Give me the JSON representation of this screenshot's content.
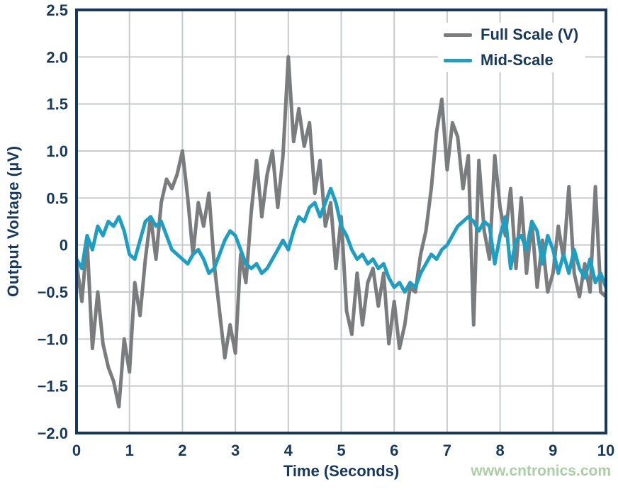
{
  "page": {
    "watermark": "www.cntronics.com"
  },
  "chart_data": {
    "type": "line",
    "title": "",
    "xlabel": "Time (Seconds)",
    "ylabel": "Output Voltage (µV)",
    "xlim": [
      0,
      10
    ],
    "ylim": [
      -2.0,
      2.5
    ],
    "grid": true,
    "legend_position": "top-right",
    "xticks": {
      "values": [
        0,
        1,
        2,
        3,
        4,
        5,
        6,
        7,
        8,
        9,
        10
      ],
      "labels": [
        "0",
        "1",
        "2",
        "3",
        "4",
        "5",
        "6",
        "7",
        "8",
        "9",
        "10"
      ]
    },
    "yticks": {
      "values": [
        2.5,
        2.0,
        1.5,
        1.0,
        0.5,
        0,
        -0.5,
        -1.0,
        -1.5,
        -2.0
      ],
      "labels": [
        "2.5",
        "2.0",
        "1.5",
        "1.0",
        "0.5",
        "0",
        "−0.5",
        "−1.0",
        "−1.5",
        "−2.0"
      ]
    },
    "x_start": 0,
    "x_step": 0.1,
    "colors": {
      "axis": "#17395e",
      "grid": "#c8cacc",
      "background": "#ffffff"
    },
    "series": [
      {
        "name": "Full Scale (V)",
        "color": "#7b7c7e",
        "values": [
          -0.2,
          -0.6,
          0.05,
          -1.1,
          -0.5,
          -1.05,
          -1.3,
          -1.45,
          -1.72,
          -1.0,
          -1.35,
          -0.4,
          -0.75,
          -0.15,
          0.3,
          -0.15,
          0.45,
          0.7,
          0.6,
          0.75,
          1.0,
          0.5,
          -0.1,
          0.45,
          0.2,
          0.55,
          -0.2,
          -0.7,
          -1.2,
          -0.85,
          -1.15,
          -0.1,
          -0.4,
          0.35,
          0.9,
          0.3,
          0.75,
          1.0,
          0.4,
          0.95,
          2.0,
          1.1,
          1.45,
          1.05,
          1.3,
          0.55,
          0.9,
          0.2,
          0.45,
          -0.25,
          0.3,
          -0.7,
          -0.95,
          -0.3,
          -0.85,
          -0.4,
          -0.25,
          -0.65,
          -0.3,
          -1.05,
          -0.6,
          -1.1,
          -0.85,
          -0.45,
          -0.5,
          -0.1,
          0.15,
          0.6,
          1.2,
          1.55,
          0.8,
          1.3,
          1.15,
          0.6,
          0.95,
          -0.85,
          0.9,
          0.15,
          -0.15,
          0.95,
          0.4,
          0.1,
          0.6,
          -0.25,
          0.5,
          -0.3,
          0.25,
          -0.45,
          0.05,
          -0.5,
          -0.3,
          0.2,
          -0.15,
          0.62,
          -0.3,
          -0.55,
          -0.2,
          -0.5,
          0.62,
          -0.5,
          -0.55
        ]
      },
      {
        "name": "Mid-Scale",
        "color": "#1c9fc2",
        "values": [
          -0.15,
          -0.25,
          0.1,
          -0.05,
          0.2,
          0.1,
          0.25,
          0.2,
          0.3,
          0.15,
          -0.1,
          -0.15,
          0.05,
          0.25,
          0.3,
          0.2,
          0.25,
          0.1,
          -0.05,
          -0.1,
          -0.15,
          -0.2,
          -0.1,
          -0.05,
          -0.15,
          -0.3,
          -0.25,
          -0.1,
          0.05,
          0.15,
          0.1,
          -0.05,
          -0.2,
          -0.25,
          -0.2,
          -0.3,
          -0.25,
          -0.15,
          -0.05,
          0.05,
          -0.05,
          0.15,
          0.3,
          0.25,
          0.4,
          0.45,
          0.3,
          0.45,
          0.6,
          0.45,
          0.2,
          0.1,
          -0.05,
          -0.15,
          -0.1,
          -0.2,
          -0.15,
          -0.25,
          -0.2,
          -0.35,
          -0.45,
          -0.4,
          -0.5,
          -0.4,
          -0.45,
          -0.3,
          -0.2,
          -0.1,
          -0.15,
          -0.05,
          0.0,
          0.1,
          0.2,
          0.25,
          0.3,
          0.25,
          0.15,
          0.25,
          0.2,
          -0.2,
          0.1,
          0.3,
          -0.25,
          0.05,
          0.1,
          -0.05,
          0.25,
          0.15,
          -0.2,
          0.1,
          -0.05,
          -0.3,
          -0.1,
          -0.3,
          -0.05,
          -0.25,
          -0.35,
          -0.15,
          -0.4,
          -0.3,
          -0.45
        ]
      }
    ]
  }
}
